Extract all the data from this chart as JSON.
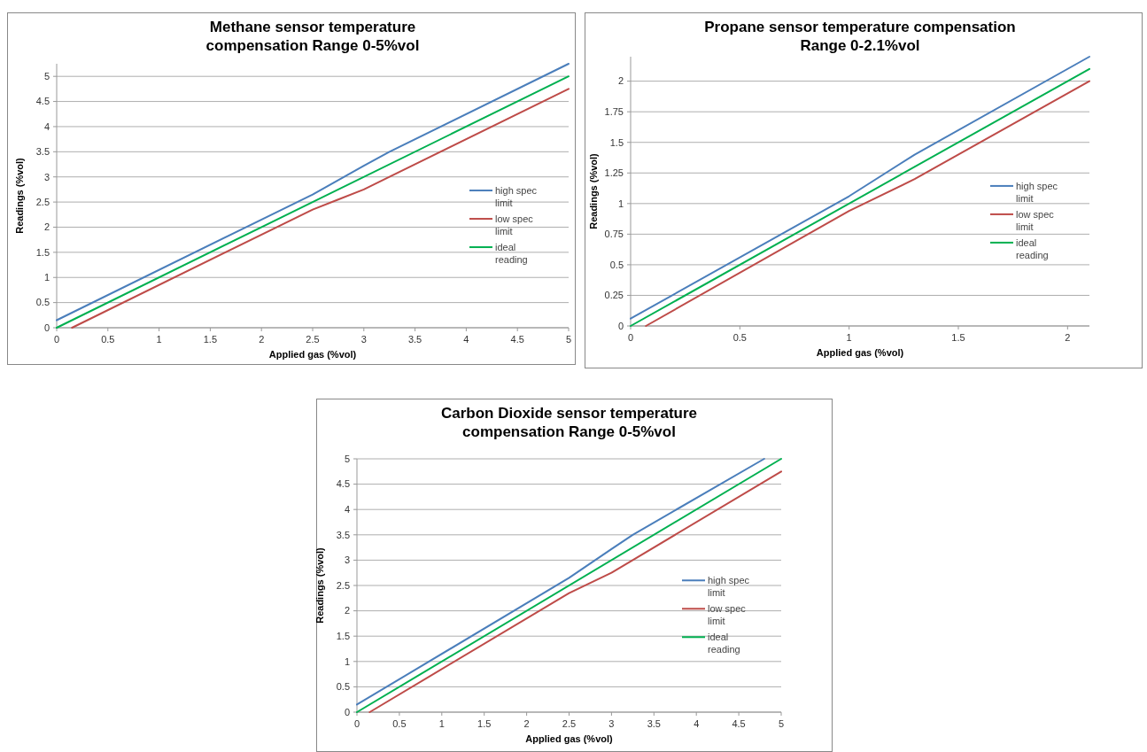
{
  "chart_data": [
    {
      "type": "line",
      "title": "Methane sensor temperature compensation Range 0-5%vol",
      "xlabel": "Applied gas (%vol)",
      "ylabel": "Readings (%vol)",
      "xlim": [
        0,
        5
      ],
      "xticks": [
        0,
        0.5,
        1,
        1.5,
        2,
        2.5,
        3,
        3.5,
        4,
        4.5,
        5
      ],
      "ylim": [
        0,
        5.25
      ],
      "yticks": [
        0,
        0.5,
        1,
        1.5,
        2,
        2.5,
        3,
        3.5,
        4,
        4.5,
        5
      ],
      "grid": "y",
      "legend": "right",
      "line_style": "solid",
      "series": [
        {
          "name": "high spec limit",
          "color": "#4a7ebb",
          "x": [
            0,
            2.5,
            3,
            3.25,
            5
          ],
          "values": [
            0.15,
            2.65,
            3.22,
            3.5,
            5.25
          ]
        },
        {
          "name": "low spec limit",
          "color": "#be4b48",
          "x": [
            0.15,
            2.5,
            2.75,
            3,
            3.25,
            5
          ],
          "values": [
            0,
            2.35,
            2.55,
            2.75,
            3.0,
            4.75
          ]
        },
        {
          "name": "ideal reading",
          "color": "#00b050",
          "x": [
            0,
            5
          ],
          "values": [
            0,
            5
          ]
        }
      ]
    },
    {
      "type": "line",
      "title": "Propane sensor temperature compensation Range 0-2.1%vol",
      "xlabel": "Applied gas (%vol)",
      "ylabel": "Readings (%vol)",
      "xlim": [
        0,
        2.1
      ],
      "xticks": [
        0,
        0.5,
        1,
        1.5,
        2
      ],
      "ylim": [
        0,
        2.2
      ],
      "yticks": [
        0,
        0.25,
        0.5,
        0.75,
        1,
        1.25,
        1.5,
        1.75,
        2
      ],
      "grid": "y",
      "legend": "right",
      "line_style": "solid",
      "series": [
        {
          "name": "high spec limit",
          "color": "#4a7ebb",
          "x": [
            0,
            1,
            1.3,
            2.1
          ],
          "values": [
            0.06,
            1.06,
            1.4,
            2.2
          ]
        },
        {
          "name": "low spec limit",
          "color": "#be4b48",
          "x": [
            0.07,
            1,
            1.3,
            2.1
          ],
          "values": [
            0,
            0.94,
            1.2,
            2.0
          ]
        },
        {
          "name": "ideal reading",
          "color": "#00b050",
          "x": [
            0,
            2.1
          ],
          "values": [
            0,
            2.1
          ]
        }
      ]
    },
    {
      "type": "line",
      "title": "Carbon Dioxide sensor temperature compensation Range 0-5%vol",
      "xlabel": "Applied gas (%vol)",
      "ylabel": "Readings (%vol)",
      "xlim": [
        0,
        5
      ],
      "xticks": [
        0,
        0.5,
        1,
        1.5,
        2,
        2.5,
        3,
        3.5,
        4,
        4.5,
        5
      ],
      "ylim": [
        0,
        5
      ],
      "yticks": [
        0,
        0.5,
        1,
        1.5,
        2,
        2.5,
        3,
        3.5,
        4,
        4.5,
        5
      ],
      "grid": "y",
      "legend": "right",
      "line_style": "solid",
      "series": [
        {
          "name": "high spec limit",
          "color": "#4a7ebb",
          "x": [
            0,
            2.5,
            3,
            3.25,
            4.8
          ],
          "values": [
            0.15,
            2.65,
            3.22,
            3.5,
            5
          ]
        },
        {
          "name": "low spec limit",
          "color": "#be4b48",
          "x": [
            0.15,
            2.5,
            2.75,
            3,
            3.25,
            5
          ],
          "values": [
            0,
            2.35,
            2.55,
            2.75,
            3.0,
            4.75
          ]
        },
        {
          "name": "ideal reading",
          "color": "#00b050",
          "x": [
            0,
            5
          ],
          "values": [
            0,
            5
          ]
        }
      ]
    }
  ]
}
